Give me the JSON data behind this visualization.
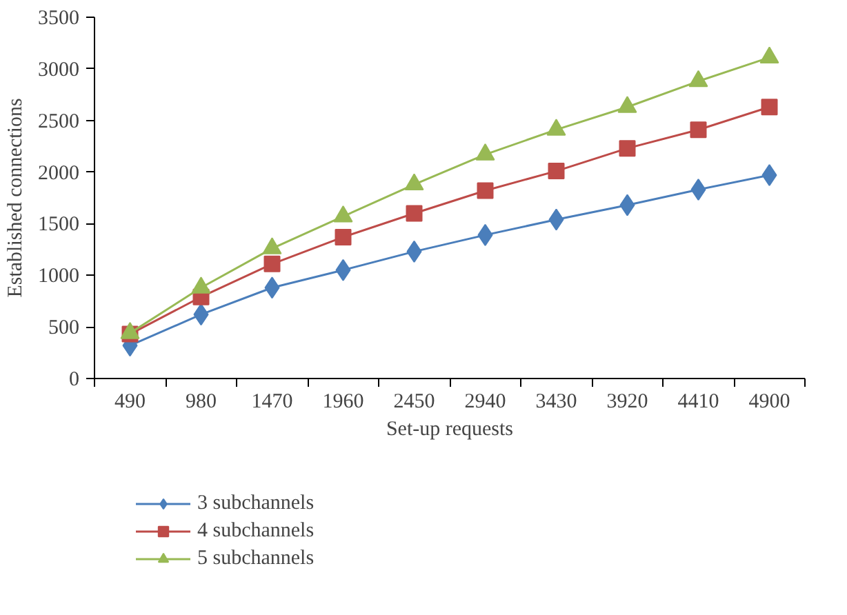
{
  "chart_data": {
    "type": "line",
    "xlabel": "Set-up requests",
    "ylabel": "Established connections",
    "categories": [
      "490",
      "980",
      "1470",
      "1960",
      "2450",
      "2940",
      "3430",
      "3920",
      "4410",
      "4900"
    ],
    "series": [
      {
        "name": "3 subchannels",
        "color": "#4a7ebb",
        "marker": "diamond",
        "values": [
          320,
          620,
          880,
          1050,
          1230,
          1390,
          1540,
          1680,
          1830,
          1970
        ]
      },
      {
        "name": "4 subchannels",
        "color": "#be4b48",
        "marker": "square",
        "values": [
          430,
          790,
          1110,
          1370,
          1600,
          1820,
          2010,
          2230,
          2410,
          2630
        ]
      },
      {
        "name": "5 subchannels",
        "color": "#98b954",
        "marker": "triangle",
        "values": [
          440,
          880,
          1260,
          1570,
          1880,
          2170,
          2410,
          2630,
          2880,
          3110
        ]
      }
    ],
    "ylim": [
      0,
      3500
    ],
    "yticks": [
      0,
      500,
      1000,
      1500,
      2000,
      2500,
      3000,
      3500
    ],
    "grid": false,
    "legend": "bottom left",
    "line_style": "solid"
  }
}
